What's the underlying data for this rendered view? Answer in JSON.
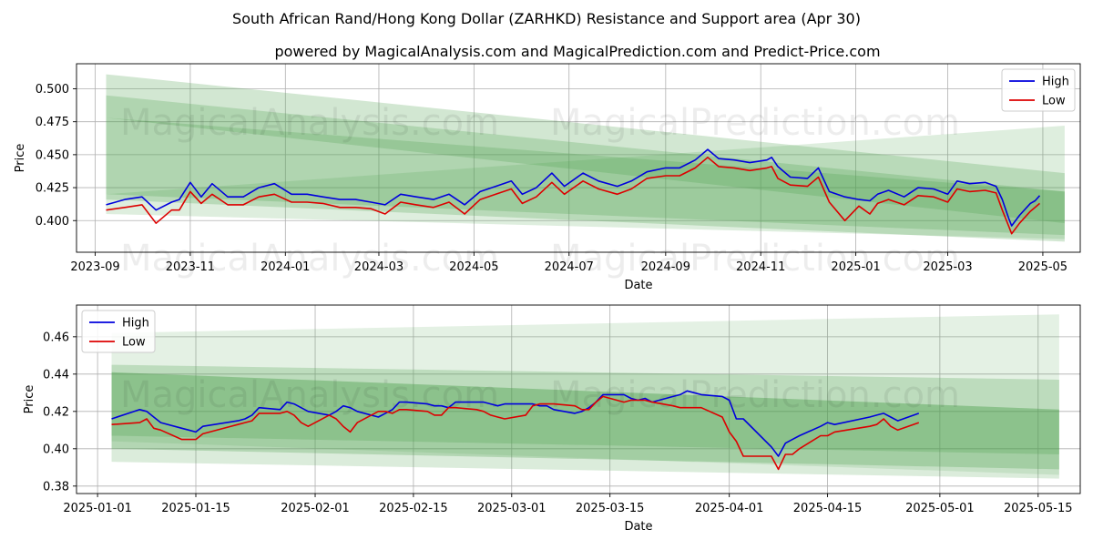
{
  "title": "South African Rand/Hong Kong Dollar (ZARHKD) Resistance and Support area (Apr 30)",
  "subtitle": "powered by MagicalAnalysis.com and MagicalPrediction.com and Predict-Price.com",
  "watermarks": [
    "MagicalAnalysis.com",
    "MagicalPrediction.com"
  ],
  "colors": {
    "high": "#0000dd",
    "low": "#dd0000",
    "band": "#4a9e4a"
  },
  "chart_data": [
    {
      "type": "line",
      "xlabel": "Date",
      "ylabel": "Price",
      "xlim": [
        "2023-08-20",
        "2025-05-25"
      ],
      "ylim": [
        0.376,
        0.519
      ],
      "xticks": [
        {
          "date": "2023-09-01",
          "label": "2023-09"
        },
        {
          "date": "2023-11-01",
          "label": "2023-11"
        },
        {
          "date": "2024-01-01",
          "label": "2024-01"
        },
        {
          "date": "2024-03-01",
          "label": "2024-03"
        },
        {
          "date": "2024-05-01",
          "label": "2024-05"
        },
        {
          "date": "2024-07-01",
          "label": "2024-07"
        },
        {
          "date": "2024-09-01",
          "label": "2024-09"
        },
        {
          "date": "2024-11-01",
          "label": "2024-11"
        },
        {
          "date": "2025-01-01",
          "label": "2025-01"
        },
        {
          "date": "2025-03-01",
          "label": "2025-03"
        },
        {
          "date": "2025-05-01",
          "label": "2025-05"
        }
      ],
      "yticks": [
        {
          "value": 0.4,
          "label": "0.400"
        },
        {
          "value": 0.425,
          "label": "0.425"
        },
        {
          "value": 0.45,
          "label": "0.450"
        },
        {
          "value": 0.475,
          "label": "0.475"
        },
        {
          "value": 0.5,
          "label": "0.500"
        }
      ],
      "grid": true,
      "legend": "top-right",
      "bands": [
        {
          "x": [
            "2023-09-08",
            "2025-05-15"
          ],
          "top": [
            0.511,
            0.436
          ],
          "bottom": [
            0.478,
            0.398
          ],
          "opacity": 0.25
        },
        {
          "x": [
            "2023-09-08",
            "2025-05-15"
          ],
          "top": [
            0.495,
            0.422
          ],
          "bottom": [
            0.42,
            0.389
          ],
          "opacity": 0.25
        },
        {
          "x": [
            "2023-09-08",
            "2025-05-15"
          ],
          "top": [
            0.478,
            0.422
          ],
          "bottom": [
            0.416,
            0.384
          ],
          "opacity": 0.25
        },
        {
          "x": [
            "2023-09-08",
            "2025-05-15"
          ],
          "top": [
            0.42,
            0.472
          ],
          "bottom": [
            0.405,
            0.386
          ],
          "opacity": 0.18
        }
      ],
      "series": [
        {
          "name": "High",
          "x": [
            "2023-09-08",
            "2023-09-20",
            "2023-10-01",
            "2023-10-10",
            "2023-10-20",
            "2023-10-25",
            "2023-11-01",
            "2023-11-08",
            "2023-11-15",
            "2023-11-25",
            "2023-12-05",
            "2023-12-15",
            "2023-12-25",
            "2024-01-05",
            "2024-01-15",
            "2024-01-25",
            "2024-02-05",
            "2024-02-15",
            "2024-02-25",
            "2024-03-05",
            "2024-03-15",
            "2024-03-25",
            "2024-04-05",
            "2024-04-15",
            "2024-04-25",
            "2024-05-05",
            "2024-05-15",
            "2024-05-25",
            "2024-06-01",
            "2024-06-10",
            "2024-06-20",
            "2024-06-28",
            "2024-07-10",
            "2024-07-20",
            "2024-08-01",
            "2024-08-10",
            "2024-08-20",
            "2024-09-01",
            "2024-09-10",
            "2024-09-20",
            "2024-09-28",
            "2024-10-05",
            "2024-10-15",
            "2024-10-25",
            "2024-11-05",
            "2024-11-08",
            "2024-11-12",
            "2024-11-20",
            "2024-12-01",
            "2024-12-08",
            "2024-12-15",
            "2024-12-25",
            "2025-01-03",
            "2025-01-10",
            "2025-01-15",
            "2025-01-22",
            "2025-02-01",
            "2025-02-10",
            "2025-02-20",
            "2025-03-01",
            "2025-03-07",
            "2025-03-15",
            "2025-03-25",
            "2025-04-01",
            "2025-04-05",
            "2025-04-09",
            "2025-04-11",
            "2025-04-16",
            "2025-04-23",
            "2025-04-26",
            "2025-04-29"
          ],
          "values": [
            0.412,
            0.416,
            0.418,
            0.408,
            0.414,
            0.416,
            0.429,
            0.418,
            0.428,
            0.418,
            0.418,
            0.425,
            0.428,
            0.42,
            0.42,
            0.418,
            0.416,
            0.416,
            0.414,
            0.412,
            0.42,
            0.418,
            0.416,
            0.42,
            0.412,
            0.422,
            0.426,
            0.43,
            0.42,
            0.425,
            0.436,
            0.426,
            0.436,
            0.43,
            0.426,
            0.43,
            0.437,
            0.44,
            0.44,
            0.446,
            0.454,
            0.447,
            0.446,
            0.444,
            0.446,
            0.448,
            0.441,
            0.433,
            0.432,
            0.44,
            0.422,
            0.418,
            0.416,
            0.415,
            0.42,
            0.423,
            0.418,
            0.425,
            0.424,
            0.42,
            0.43,
            0.428,
            0.429,
            0.426,
            0.416,
            0.402,
            0.396,
            0.404,
            0.413,
            0.415,
            0.419
          ]
        },
        {
          "name": "Low",
          "x": [
            "2023-09-08",
            "2023-09-20",
            "2023-10-01",
            "2023-10-10",
            "2023-10-20",
            "2023-10-25",
            "2023-11-01",
            "2023-11-08",
            "2023-11-15",
            "2023-11-25",
            "2023-12-05",
            "2023-12-15",
            "2023-12-25",
            "2024-01-05",
            "2024-01-15",
            "2024-01-25",
            "2024-02-05",
            "2024-02-15",
            "2024-02-25",
            "2024-03-05",
            "2024-03-15",
            "2024-03-25",
            "2024-04-05",
            "2024-04-15",
            "2024-04-25",
            "2024-05-05",
            "2024-05-15",
            "2024-05-25",
            "2024-06-01",
            "2024-06-10",
            "2024-06-20",
            "2024-06-28",
            "2024-07-10",
            "2024-07-20",
            "2024-08-01",
            "2024-08-10",
            "2024-08-20",
            "2024-09-01",
            "2024-09-10",
            "2024-09-20",
            "2024-09-28",
            "2024-10-05",
            "2024-10-15",
            "2024-10-25",
            "2024-11-05",
            "2024-11-08",
            "2024-11-12",
            "2024-11-20",
            "2024-12-01",
            "2024-12-08",
            "2024-12-15",
            "2024-12-25",
            "2025-01-03",
            "2025-01-10",
            "2025-01-15",
            "2025-01-22",
            "2025-02-01",
            "2025-02-10",
            "2025-02-20",
            "2025-03-01",
            "2025-03-07",
            "2025-03-15",
            "2025-03-25",
            "2025-04-01",
            "2025-04-05",
            "2025-04-09",
            "2025-04-11",
            "2025-04-16",
            "2025-04-23",
            "2025-04-26",
            "2025-04-29"
          ],
          "values": [
            0.408,
            0.41,
            0.412,
            0.398,
            0.408,
            0.408,
            0.422,
            0.413,
            0.42,
            0.412,
            0.412,
            0.418,
            0.42,
            0.414,
            0.414,
            0.413,
            0.41,
            0.41,
            0.409,
            0.405,
            0.414,
            0.412,
            0.41,
            0.414,
            0.405,
            0.416,
            0.42,
            0.424,
            0.413,
            0.418,
            0.429,
            0.42,
            0.43,
            0.424,
            0.42,
            0.424,
            0.432,
            0.434,
            0.434,
            0.44,
            0.448,
            0.441,
            0.44,
            0.438,
            0.44,
            0.441,
            0.432,
            0.427,
            0.426,
            0.433,
            0.414,
            0.4,
            0.411,
            0.405,
            0.413,
            0.416,
            0.412,
            0.419,
            0.418,
            0.414,
            0.424,
            0.422,
            0.423,
            0.421,
            0.408,
            0.396,
            0.39,
            0.398,
            0.407,
            0.41,
            0.413
          ]
        }
      ]
    },
    {
      "type": "line",
      "xlabel": "Date",
      "ylabel": "Price",
      "xlim": [
        "2024-12-29",
        "2025-05-21"
      ],
      "ylim": [
        0.376,
        0.477
      ],
      "xticks": [
        {
          "date": "2025-01-01",
          "label": "2025-01-01"
        },
        {
          "date": "2025-01-15",
          "label": "2025-01-15"
        },
        {
          "date": "2025-02-01",
          "label": "2025-02-01"
        },
        {
          "date": "2025-02-15",
          "label": "2025-02-15"
        },
        {
          "date": "2025-03-01",
          "label": "2025-03-01"
        },
        {
          "date": "2025-03-15",
          "label": "2025-03-15"
        },
        {
          "date": "2025-04-01",
          "label": "2025-04-01"
        },
        {
          "date": "2025-04-15",
          "label": "2025-04-15"
        },
        {
          "date": "2025-05-01",
          "label": "2025-05-01"
        },
        {
          "date": "2025-05-15",
          "label": "2025-05-15"
        }
      ],
      "yticks": [
        {
          "value": 0.38,
          "label": "0.38"
        },
        {
          "value": 0.4,
          "label": "0.40"
        },
        {
          "value": 0.42,
          "label": "0.42"
        },
        {
          "value": 0.44,
          "label": "0.44"
        },
        {
          "value": 0.46,
          "label": "0.46"
        }
      ],
      "grid": true,
      "legend": "top-left",
      "bands": [
        {
          "x": [
            "2025-01-03",
            "2025-05-18"
          ],
          "top": [
            0.445,
            0.437
          ],
          "bottom": [
            0.407,
            0.397
          ],
          "opacity": 0.25
        },
        {
          "x": [
            "2025-01-03",
            "2025-05-18"
          ],
          "top": [
            0.441,
            0.421
          ],
          "bottom": [
            0.4,
            0.389
          ],
          "opacity": 0.28
        },
        {
          "x": [
            "2025-01-03",
            "2025-05-18"
          ],
          "top": [
            0.441,
            0.421
          ],
          "bottom": [
            0.393,
            0.384
          ],
          "opacity": 0.2
        },
        {
          "x": [
            "2025-01-03",
            "2025-05-18"
          ],
          "top": [
            0.462,
            0.472
          ],
          "bottom": [
            0.404,
            0.386
          ],
          "opacity": 0.15
        }
      ],
      "series": [
        {
          "name": "High",
          "x": [
            "2025-01-03",
            "2025-01-07",
            "2025-01-08",
            "2025-01-09",
            "2025-01-10",
            "2025-01-13",
            "2025-01-14",
            "2025-01-15",
            "2025-01-16",
            "2025-01-21",
            "2025-01-22",
            "2025-01-23",
            "2025-01-24",
            "2025-01-27",
            "2025-01-28",
            "2025-01-29",
            "2025-01-30",
            "2025-01-31",
            "2025-02-03",
            "2025-02-04",
            "2025-02-05",
            "2025-02-06",
            "2025-02-07",
            "2025-02-10",
            "2025-02-11",
            "2025-02-12",
            "2025-02-13",
            "2025-02-14",
            "2025-02-17",
            "2025-02-18",
            "2025-02-19",
            "2025-02-20",
            "2025-02-21",
            "2025-02-24",
            "2025-02-25",
            "2025-02-26",
            "2025-02-27",
            "2025-02-28",
            "2025-03-03",
            "2025-03-04",
            "2025-03-05",
            "2025-03-06",
            "2025-03-07",
            "2025-03-10",
            "2025-03-11",
            "2025-03-12",
            "2025-03-13",
            "2025-03-14",
            "2025-03-17",
            "2025-03-18",
            "2025-03-19",
            "2025-03-20",
            "2025-03-21",
            "2025-03-24",
            "2025-03-25",
            "2025-03-26",
            "2025-03-27",
            "2025-03-28",
            "2025-03-31",
            "2025-04-01",
            "2025-04-02",
            "2025-04-03",
            "2025-04-07",
            "2025-04-08",
            "2025-04-09",
            "2025-04-10",
            "2025-04-11",
            "2025-04-14",
            "2025-04-15",
            "2025-04-16",
            "2025-04-21",
            "2025-04-22",
            "2025-04-23",
            "2025-04-24",
            "2025-04-25",
            "2025-04-28"
          ],
          "values": [
            0.416,
            0.421,
            0.42,
            0.417,
            0.414,
            0.411,
            0.41,
            0.409,
            0.412,
            0.415,
            0.416,
            0.418,
            0.422,
            0.421,
            0.425,
            0.424,
            0.422,
            0.42,
            0.418,
            0.42,
            0.423,
            0.422,
            0.42,
            0.417,
            0.419,
            0.421,
            0.425,
            0.425,
            0.424,
            0.423,
            0.423,
            0.422,
            0.425,
            0.425,
            0.425,
            0.424,
            0.423,
            0.424,
            0.424,
            0.424,
            0.423,
            0.423,
            0.421,
            0.419,
            0.42,
            0.422,
            0.425,
            0.429,
            0.429,
            0.427,
            0.426,
            0.427,
            0.425,
            0.428,
            0.429,
            0.431,
            0.43,
            0.429,
            0.428,
            0.426,
            0.416,
            0.416,
            0.401,
            0.396,
            0.403,
            0.405,
            0.407,
            0.412,
            0.414,
            0.413,
            0.417,
            0.418,
            0.419,
            0.417,
            0.415,
            0.419
          ]
        },
        {
          "name": "Low",
          "x": [
            "2025-01-03",
            "2025-01-07",
            "2025-01-08",
            "2025-01-09",
            "2025-01-10",
            "2025-01-13",
            "2025-01-14",
            "2025-01-15",
            "2025-01-16",
            "2025-01-21",
            "2025-01-22",
            "2025-01-23",
            "2025-01-24",
            "2025-01-27",
            "2025-01-28",
            "2025-01-29",
            "2025-01-30",
            "2025-01-31",
            "2025-02-03",
            "2025-02-04",
            "2025-02-05",
            "2025-02-06",
            "2025-02-07",
            "2025-02-10",
            "2025-02-11",
            "2025-02-12",
            "2025-02-13",
            "2025-02-14",
            "2025-02-17",
            "2025-02-18",
            "2025-02-19",
            "2025-02-20",
            "2025-02-21",
            "2025-02-24",
            "2025-02-25",
            "2025-02-26",
            "2025-02-27",
            "2025-02-28",
            "2025-03-03",
            "2025-03-04",
            "2025-03-05",
            "2025-03-06",
            "2025-03-07",
            "2025-03-10",
            "2025-03-11",
            "2025-03-12",
            "2025-03-13",
            "2025-03-14",
            "2025-03-17",
            "2025-03-18",
            "2025-03-19",
            "2025-03-20",
            "2025-03-21",
            "2025-03-24",
            "2025-03-25",
            "2025-03-26",
            "2025-03-27",
            "2025-03-28",
            "2025-03-31",
            "2025-04-01",
            "2025-04-02",
            "2025-04-03",
            "2025-04-07",
            "2025-04-08",
            "2025-04-09",
            "2025-04-10",
            "2025-04-11",
            "2025-04-14",
            "2025-04-15",
            "2025-04-16",
            "2025-04-21",
            "2025-04-22",
            "2025-04-23",
            "2025-04-24",
            "2025-04-25",
            "2025-04-28"
          ],
          "values": [
            0.413,
            0.414,
            0.416,
            0.411,
            0.41,
            0.405,
            0.405,
            0.405,
            0.408,
            0.413,
            0.414,
            0.415,
            0.419,
            0.419,
            0.42,
            0.418,
            0.414,
            0.412,
            0.418,
            0.416,
            0.412,
            0.409,
            0.414,
            0.42,
            0.42,
            0.419,
            0.421,
            0.421,
            0.42,
            0.418,
            0.418,
            0.422,
            0.422,
            0.421,
            0.42,
            0.418,
            0.417,
            0.416,
            0.418,
            0.423,
            0.424,
            0.424,
            0.424,
            0.423,
            0.421,
            0.421,
            0.425,
            0.428,
            0.425,
            0.426,
            0.426,
            0.426,
            0.425,
            0.423,
            0.422,
            0.422,
            0.422,
            0.422,
            0.417,
            0.409,
            0.404,
            0.396,
            0.396,
            0.389,
            0.397,
            0.397,
            0.4,
            0.407,
            0.407,
            0.409,
            0.412,
            0.413,
            0.416,
            0.412,
            0.41,
            0.414
          ]
        }
      ]
    }
  ]
}
